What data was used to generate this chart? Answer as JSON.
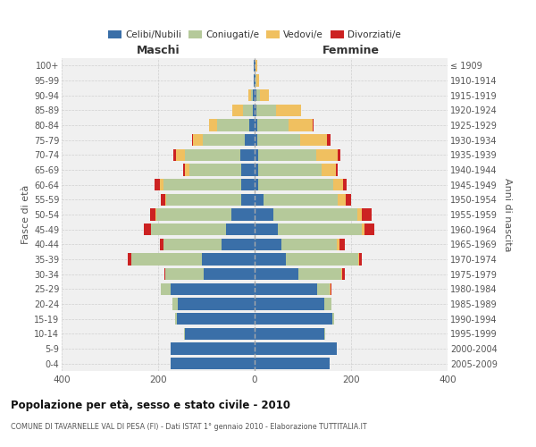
{
  "age_groups_bottom_to_top": [
    "0-4",
    "5-9",
    "10-14",
    "15-19",
    "20-24",
    "25-29",
    "30-34",
    "35-39",
    "40-44",
    "45-49",
    "50-54",
    "55-59",
    "60-64",
    "65-69",
    "70-74",
    "75-79",
    "80-84",
    "85-89",
    "90-94",
    "95-99",
    "100+"
  ],
  "birth_years_bottom_to_top": [
    "2005-2009",
    "2000-2004",
    "1995-1999",
    "1990-1994",
    "1985-1989",
    "1980-1984",
    "1975-1979",
    "1970-1974",
    "1965-1969",
    "1960-1964",
    "1955-1959",
    "1950-1954",
    "1945-1949",
    "1940-1944",
    "1935-1939",
    "1930-1934",
    "1925-1929",
    "1920-1924",
    "1915-1919",
    "1910-1914",
    "≤ 1909"
  ],
  "colors": {
    "celibi": "#3a6fa8",
    "coniugati": "#b5c99a",
    "vedovi": "#f0c060",
    "divorziati": "#cc2222"
  },
  "maschi": {
    "celibi": [
      175,
      175,
      145,
      162,
      160,
      175,
      105,
      110,
      68,
      60,
      48,
      28,
      28,
      28,
      30,
      20,
      12,
      4,
      3,
      2,
      2
    ],
    "coniugati": [
      0,
      0,
      2,
      2,
      10,
      20,
      80,
      145,
      120,
      155,
      155,
      155,
      160,
      108,
      115,
      88,
      65,
      20,
      5,
      0,
      0
    ],
    "vedovi": [
      0,
      0,
      0,
      0,
      0,
      0,
      0,
      0,
      0,
      0,
      2,
      2,
      8,
      8,
      18,
      20,
      18,
      22,
      5,
      0,
      0
    ],
    "divorziati": [
      0,
      0,
      0,
      0,
      0,
      0,
      2,
      8,
      8,
      15,
      12,
      10,
      12,
      5,
      5,
      2,
      0,
      0,
      0,
      0,
      0
    ]
  },
  "femmine": {
    "celibi": [
      155,
      170,
      145,
      162,
      145,
      130,
      90,
      65,
      55,
      48,
      38,
      18,
      8,
      8,
      8,
      5,
      5,
      4,
      3,
      2,
      2
    ],
    "coniugati": [
      0,
      0,
      2,
      2,
      15,
      25,
      90,
      150,
      115,
      175,
      175,
      155,
      155,
      130,
      120,
      90,
      65,
      40,
      8,
      2,
      0
    ],
    "vedovi": [
      0,
      0,
      0,
      0,
      0,
      2,
      2,
      2,
      5,
      5,
      10,
      15,
      20,
      30,
      45,
      55,
      50,
      52,
      18,
      5,
      3
    ],
    "divorziati": [
      0,
      0,
      0,
      0,
      0,
      2,
      5,
      5,
      12,
      20,
      20,
      12,
      8,
      5,
      5,
      8,
      2,
      0,
      0,
      0,
      0
    ]
  },
  "title": "Popolazione per età, sesso e stato civile - 2010",
  "subtitle": "COMUNE DI TAVARNELLE VAL DI PESA (FI) - Dati ISTAT 1° gennaio 2010 - Elaborazione TUTTITALIA.IT",
  "xlabel_left": "Maschi",
  "xlabel_right": "Femmine",
  "ylabel_left": "Fasce di età",
  "ylabel_right": "Anni di nascita",
  "xlim": 400,
  "xticks": [
    -400,
    -200,
    0,
    200,
    400
  ],
  "xtick_labels": [
    "400",
    "200",
    "0",
    "200",
    "400"
  ],
  "legend_labels": [
    "Celibi/Nubili",
    "Coniugati/e",
    "Vedovi/e",
    "Divorziati/e"
  ],
  "bg_color": "#f0f0f0",
  "grid_color": "#cccccc",
  "bar_height": 0.8,
  "fig_bg": "#ffffff"
}
